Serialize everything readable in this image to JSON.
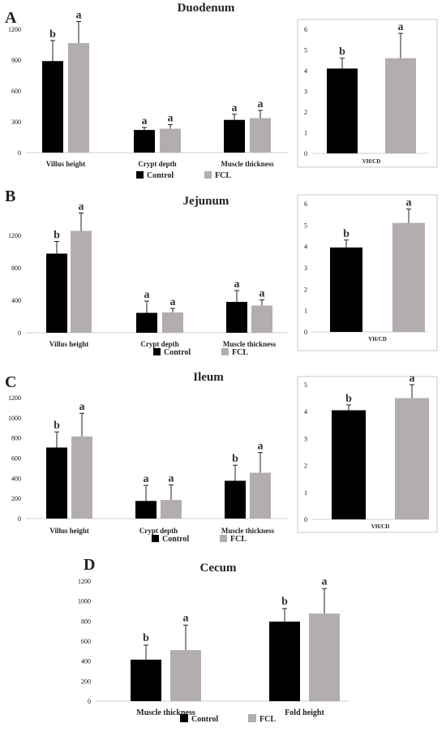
{
  "legend": {
    "control": "Control",
    "fcl": "FCL"
  },
  "colors": {
    "control": "#000000",
    "fcl": "#b3adad",
    "error": "#222222",
    "frame": "#c8c8c8"
  },
  "panels": [
    {
      "letter": "A",
      "title": "Duodenum"
    },
    {
      "letter": "B",
      "title": "Jejunum"
    },
    {
      "letter": "C",
      "title": "Ileum"
    },
    {
      "letter": "D",
      "title": "Cecum"
    }
  ],
  "chart_data": [
    {
      "id": "duodenum-main",
      "type": "bar",
      "title": "Duodenum",
      "categories": [
        "Villus height",
        "Crypt depth",
        "Muscle thickness"
      ],
      "ylim": [
        0,
        1200
      ],
      "yticks": [
        0,
        300,
        600,
        900,
        1200
      ],
      "series": [
        {
          "name": "Control",
          "values": [
            890,
            220,
            318
          ],
          "errors": [
            200,
            25,
            55
          ],
          "letters": [
            "b",
            "a",
            "a"
          ]
        },
        {
          "name": "FCL",
          "values": [
            1065,
            232,
            335
          ],
          "errors": [
            210,
            40,
            75
          ],
          "letters": [
            "a",
            "a",
            "a"
          ]
        }
      ]
    },
    {
      "id": "duodenum-vhcd",
      "type": "bar",
      "categories": [
        "VH/CD"
      ],
      "ylim": [
        0,
        6
      ],
      "yticks": [
        0,
        1,
        2,
        3,
        4,
        5,
        6
      ],
      "series": [
        {
          "name": "Control",
          "values": [
            4.1
          ],
          "errors": [
            0.5
          ],
          "letters": [
            "b"
          ]
        },
        {
          "name": "FCL",
          "values": [
            4.6
          ],
          "errors": [
            1.2
          ],
          "letters": [
            "a"
          ]
        }
      ]
    },
    {
      "id": "jejunum-main",
      "type": "bar",
      "title": "Jejunum",
      "categories": [
        "Villus height",
        "Crypt depth",
        "Muscle thickness"
      ],
      "ylim": [
        0,
        1600
      ],
      "yticks": [
        0,
        400,
        800,
        1200
      ],
      "series": [
        {
          "name": "Control",
          "values": [
            975,
            245,
            380
          ],
          "errors": [
            150,
            145,
            140
          ],
          "letters": [
            "b",
            "a",
            "a"
          ]
        },
        {
          "name": "FCL",
          "values": [
            1255,
            250,
            335
          ],
          "errors": [
            220,
            50,
            70
          ],
          "letters": [
            "a",
            "a",
            "a"
          ]
        }
      ]
    },
    {
      "id": "jejunum-vhcd",
      "type": "bar",
      "categories": [
        "VH/CD"
      ],
      "ylim": [
        0,
        6
      ],
      "yticks": [
        0,
        1,
        2,
        3,
        4,
        5,
        6
      ],
      "series": [
        {
          "name": "Control",
          "values": [
            3.95
          ],
          "errors": [
            0.35
          ],
          "letters": [
            "b"
          ]
        },
        {
          "name": "FCL",
          "values": [
            5.1
          ],
          "errors": [
            0.65
          ],
          "letters": [
            "a"
          ]
        }
      ]
    },
    {
      "id": "ileum-main",
      "type": "bar",
      "title": "Ileum",
      "categories": [
        "Villus height",
        "Crypt depth",
        "Muscle thickness"
      ],
      "ylim": [
        0,
        1200
      ],
      "yticks": [
        0,
        200,
        400,
        600,
        800,
        1000,
        1200
      ],
      "series": [
        {
          "name": "Control",
          "values": [
            705,
            175,
            375
          ],
          "errors": [
            155,
            155,
            155
          ],
          "letters": [
            "b",
            "a",
            "b"
          ]
        },
        {
          "name": "FCL",
          "values": [
            815,
            185,
            455
          ],
          "errors": [
            230,
            150,
            200
          ],
          "letters": [
            "a",
            "a",
            "a"
          ]
        }
      ]
    },
    {
      "id": "ileum-vhcd",
      "type": "bar",
      "categories": [
        "VH/CD"
      ],
      "ylim": [
        0,
        5
      ],
      "yticks": [
        0,
        1,
        2,
        3,
        4,
        5
      ],
      "series": [
        {
          "name": "Control",
          "values": [
            4.05
          ],
          "errors": [
            0.2
          ],
          "letters": [
            "b"
          ]
        },
        {
          "name": "FCL",
          "values": [
            4.5
          ],
          "errors": [
            0.5
          ],
          "letters": [
            "a"
          ]
        }
      ]
    },
    {
      "id": "cecum",
      "type": "bar",
      "title": "Cecum",
      "categories": [
        "Muscle thickness",
        "Fold height"
      ],
      "ylim": [
        0,
        1200
      ],
      "yticks": [
        0,
        200,
        400,
        600,
        800,
        1000,
        1200
      ],
      "series": [
        {
          "name": "Control",
          "values": [
            415,
            795
          ],
          "errors": [
            145,
            130
          ],
          "letters": [
            "b",
            "b"
          ]
        },
        {
          "name": "FCL",
          "values": [
            510,
            875
          ],
          "errors": [
            250,
            250
          ],
          "letters": [
            "a",
            "a"
          ]
        }
      ]
    }
  ]
}
